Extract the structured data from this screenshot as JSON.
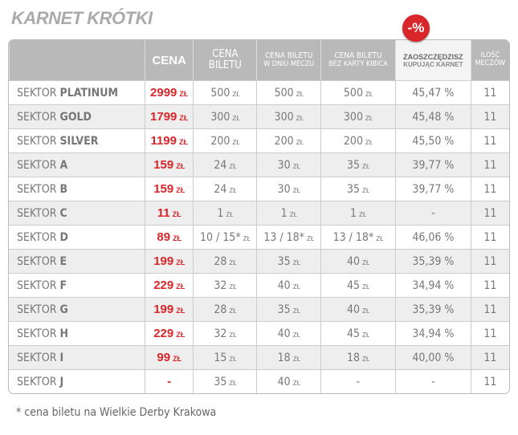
{
  "title": "KARNET KRÓTKI",
  "badge": "-%",
  "header": [
    [],
    [
      "CENA"
    ],
    [
      "CENA",
      "BILETU"
    ],
    [
      "CENA BILETU",
      "W DNIU MECZU"
    ],
    [
      "CENA BILETU",
      "BEZ KARTY KIBICA"
    ],
    [
      "ZAOSZCZĘDZISZ",
      "KUPUJĄC KARNET"
    ],
    [
      "ILOŚĆ",
      "MECZÓW"
    ]
  ],
  "rows": [
    {
      "sector": [
        "SEKTOR",
        "PLATINUM"
      ],
      "cells": [
        [
          "2999",
          "ZŁ"
        ],
        [
          "500",
          "ZŁ"
        ],
        [
          "500",
          "ZŁ"
        ],
        [
          "500",
          "ZŁ"
        ],
        [
          "45,47 %"
        ],
        [
          "11"
        ]
      ]
    },
    {
      "sector": [
        "SEKTOR",
        "GOLD"
      ],
      "cells": [
        [
          "1799",
          "ZŁ"
        ],
        [
          "300",
          "ZŁ"
        ],
        [
          "300",
          "ZŁ"
        ],
        [
          "300",
          "ZŁ"
        ],
        [
          "45,48 %"
        ],
        [
          "11"
        ]
      ]
    },
    {
      "sector": [
        "SEKTOR",
        "SILVER"
      ],
      "cells": [
        [
          "1199",
          "ZŁ"
        ],
        [
          "200",
          "ZŁ"
        ],
        [
          "200",
          "ZŁ"
        ],
        [
          "200",
          "ZŁ"
        ],
        [
          "45,50 %"
        ],
        [
          "11"
        ]
      ]
    },
    {
      "sector": [
        "SEKTOR",
        "A"
      ],
      "cells": [
        [
          "159",
          "ZŁ"
        ],
        [
          "24",
          "ZŁ"
        ],
        [
          "30",
          "ZŁ"
        ],
        [
          "35",
          "ZŁ"
        ],
        [
          "39,77 %"
        ],
        [
          "11"
        ]
      ]
    },
    {
      "sector": [
        "SEKTOR",
        "B"
      ],
      "cells": [
        [
          "159",
          "ZŁ"
        ],
        [
          "24",
          "ZŁ"
        ],
        [
          "30",
          "ZŁ"
        ],
        [
          "35",
          "ZŁ"
        ],
        [
          "39,77 %"
        ],
        [
          "11"
        ]
      ]
    },
    {
      "sector": [
        "SEKTOR",
        "C"
      ],
      "cells": [
        [
          "11",
          "ZŁ"
        ],
        [
          "1",
          "ZŁ"
        ],
        [
          "1",
          "ZŁ"
        ],
        [
          "1",
          "ZŁ"
        ],
        [
          "-"
        ],
        [
          "11"
        ]
      ]
    },
    {
      "sector": [
        "SEKTOR",
        "D"
      ],
      "cells": [
        [
          "89",
          "ZŁ"
        ],
        [
          "10 / 15*",
          "ZŁ"
        ],
        [
          "13 / 18*",
          "ZŁ"
        ],
        [
          "13 / 18*",
          "ZŁ"
        ],
        [
          "46,06 %"
        ],
        [
          "11"
        ]
      ]
    },
    {
      "sector": [
        "SEKTOR",
        "E"
      ],
      "cells": [
        [
          "199",
          "ZŁ"
        ],
        [
          "28",
          "ZŁ"
        ],
        [
          "35",
          "ZŁ"
        ],
        [
          "40",
          "ZŁ"
        ],
        [
          "35,39 %"
        ],
        [
          "11"
        ]
      ]
    },
    {
      "sector": [
        "SEKTOR",
        "F"
      ],
      "cells": [
        [
          "229",
          "ZŁ"
        ],
        [
          "32",
          "ZŁ"
        ],
        [
          "40",
          "ZŁ"
        ],
        [
          "45",
          "ZŁ"
        ],
        [
          "34,94 %"
        ],
        [
          "11"
        ]
      ]
    },
    {
      "sector": [
        "SEKTOR",
        "G"
      ],
      "cells": [
        [
          "199",
          "ZŁ"
        ],
        [
          "28",
          "ZŁ"
        ],
        [
          "35",
          "ZŁ"
        ],
        [
          "40",
          "ZŁ"
        ],
        [
          "35,39 %"
        ],
        [
          "11"
        ]
      ]
    },
    {
      "sector": [
        "SEKTOR",
        "H"
      ],
      "cells": [
        [
          "229",
          "ZŁ"
        ],
        [
          "32",
          "ZŁ"
        ],
        [
          "40",
          "ZŁ"
        ],
        [
          "45",
          "ZŁ"
        ],
        [
          "34,94 %"
        ],
        [
          "11"
        ]
      ]
    },
    {
      "sector": [
        "SEKTOR",
        "I"
      ],
      "cells": [
        [
          "99",
          "ZŁ"
        ],
        [
          "15",
          "ZŁ"
        ],
        [
          "18",
          "ZŁ"
        ],
        [
          "18",
          "ZŁ"
        ],
        [
          "40,00 %"
        ],
        [
          "11"
        ]
      ]
    },
    {
      "sector": [
        "SEKTOR",
        "J"
      ],
      "cells": [
        [
          "-"
        ],
        [
          "35",
          "ZŁ"
        ],
        [
          "40",
          "ZŁ"
        ],
        [
          "-"
        ],
        [
          "-"
        ],
        [
          "11"
        ]
      ]
    }
  ],
  "footnote": "* cena biletu na Wielkie Derby Krakowa"
}
